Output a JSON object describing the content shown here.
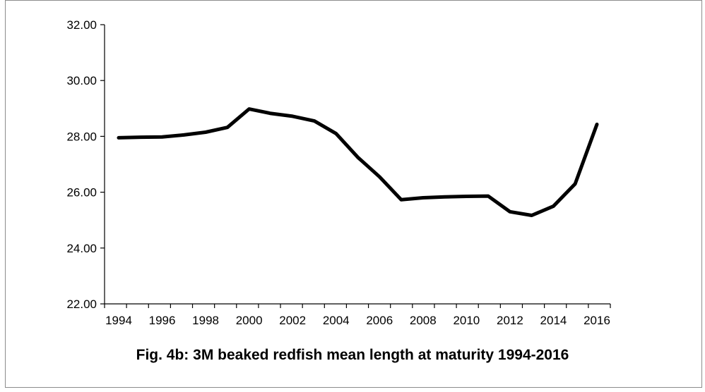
{
  "chart_data": {
    "type": "line",
    "title": "Fig. 4b: 3M beaked redfish mean length at maturity 1994-2016",
    "xlabel": "",
    "ylabel": "",
    "x": [
      1994,
      1995,
      1996,
      1997,
      1998,
      1999,
      2000,
      2001,
      2002,
      2003,
      2004,
      2005,
      2006,
      2007,
      2008,
      2009,
      2010,
      2011,
      2012,
      2013,
      2014,
      2015,
      2016
    ],
    "x_tick_labels": [
      "1994",
      "1996",
      "1998",
      "2000",
      "2002",
      "2004",
      "2006",
      "2008",
      "2010",
      "2012",
      "2014",
      "2016"
    ],
    "y_tick_labels": [
      "22.00",
      "24.00",
      "26.00",
      "28.00",
      "30.00",
      "32.00"
    ],
    "ylim": [
      22,
      32
    ],
    "grid": false,
    "legend": "none",
    "series": [
      {
        "values": [
          27.95,
          27.97,
          27.98,
          28.05,
          28.15,
          28.32,
          28.98,
          28.82,
          28.72,
          28.55,
          28.1,
          27.25,
          26.55,
          25.73,
          25.8,
          25.83,
          25.85,
          25.86,
          25.3,
          25.17,
          25.5,
          26.3,
          28.43
        ],
        "color": "#000000"
      }
    ]
  }
}
